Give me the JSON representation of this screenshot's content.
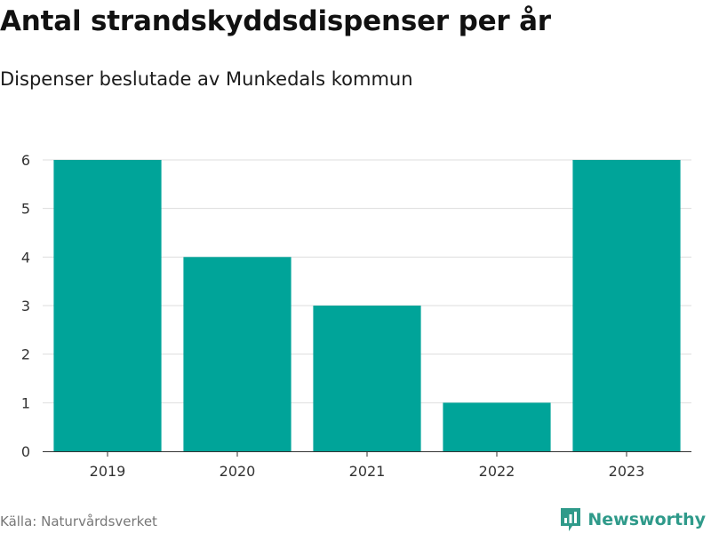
{
  "header": {
    "title": "Antal strandskyddsdispenser per år",
    "subtitle": "Dispenser beslutade av Munkedals kommun"
  },
  "footer": {
    "source": "Källa: Naturvårdsverket",
    "brand": "Newsworthy",
    "brand_icon": "newsworthy-logo-icon",
    "brand_color": "#2f9a8a"
  },
  "chart_data": {
    "type": "bar",
    "title": "Antal strandskyddsdispenser per år",
    "subtitle": "Dispenser beslutade av Munkedals kommun",
    "categories": [
      "2019",
      "2020",
      "2021",
      "2022",
      "2023"
    ],
    "values": [
      6,
      4,
      3,
      1,
      6
    ],
    "xlabel": "",
    "ylabel": "",
    "ylim": [
      0,
      6
    ],
    "yticks": [
      "0",
      "1",
      "2",
      "3",
      "4",
      "5",
      "6"
    ],
    "grid": true,
    "legend": "none",
    "bar_color": "#00a499"
  }
}
